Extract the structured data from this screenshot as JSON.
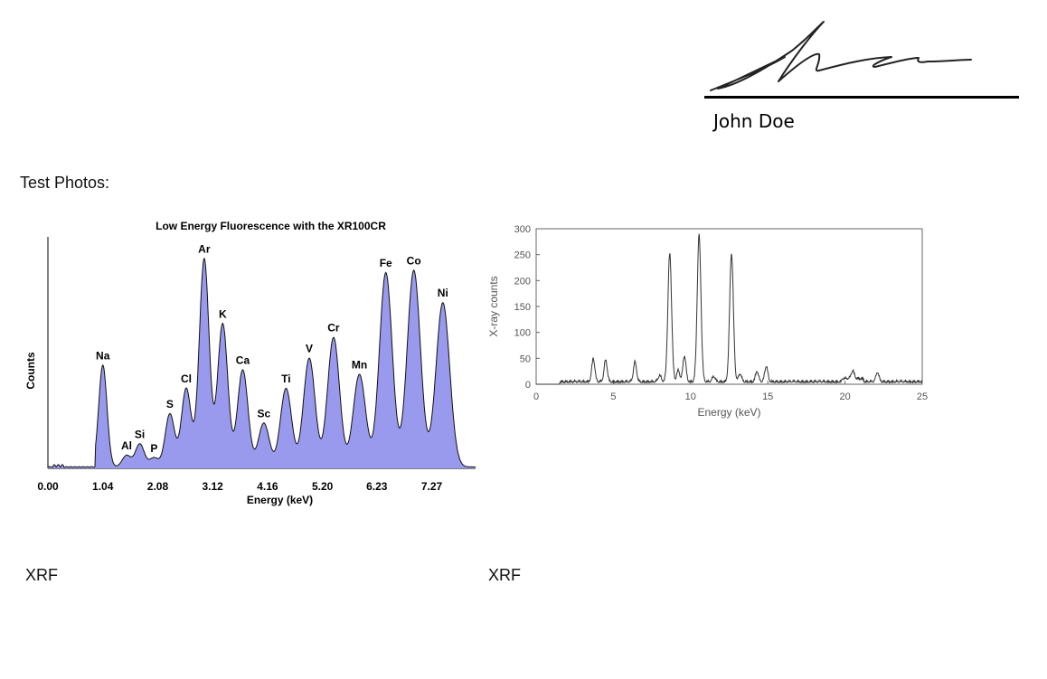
{
  "signature": {
    "name": "John Doe"
  },
  "section": {
    "heading": "Test Photos:"
  },
  "captions": {
    "left": "XRF",
    "right": "XRF"
  },
  "chart_data": [
    {
      "type": "area",
      "title": "Low Energy Fluorescence with the XR100CR",
      "xlabel": "Energy (keV)",
      "ylabel": "Counts",
      "xlim": [
        0,
        8.1
      ],
      "ylim": [
        0,
        100
      ],
      "x_ticks": [
        "0.00",
        "1.04",
        "2.08",
        "3.12",
        "4.16",
        "5.20",
        "6.23",
        "7.27"
      ],
      "y_ticks": false,
      "fill_color": "#9999ee",
      "grid": false,
      "peaks": [
        {
          "label": "Na",
          "x": 1.04,
          "y": 44
        },
        {
          "label": "Al",
          "x": 1.49,
          "y": 5
        },
        {
          "label": "Si",
          "x": 1.74,
          "y": 10
        },
        {
          "label": "P",
          "x": 2.01,
          "y": 4
        },
        {
          "label": "S",
          "x": 2.31,
          "y": 23
        },
        {
          "label": "Cl",
          "x": 2.62,
          "y": 34
        },
        {
          "label": "Ar",
          "x": 2.96,
          "y": 90
        },
        {
          "label": "K",
          "x": 3.31,
          "y": 62
        },
        {
          "label": "Ca",
          "x": 3.69,
          "y": 42
        },
        {
          "label": "Sc",
          "x": 4.09,
          "y": 19
        },
        {
          "label": "Ti",
          "x": 4.51,
          "y": 34
        },
        {
          "label": "V",
          "x": 4.95,
          "y": 47
        },
        {
          "label": "Cr",
          "x": 5.41,
          "y": 56
        },
        {
          "label": "Mn",
          "x": 5.9,
          "y": 40
        },
        {
          "label": "Fe",
          "x": 6.4,
          "y": 84
        },
        {
          "label": "Co",
          "x": 6.93,
          "y": 85
        },
        {
          "label": "Ni",
          "x": 7.48,
          "y": 71
        }
      ]
    },
    {
      "type": "line",
      "title": "",
      "xlabel": "Energy (keV)",
      "ylabel": "X-ray counts",
      "xlim": [
        0,
        25
      ],
      "ylim": [
        0,
        300
      ],
      "x_ticks": [
        0,
        5,
        10,
        15,
        20,
        25
      ],
      "y_ticks": [
        0,
        50,
        100,
        150,
        200,
        250,
        300
      ],
      "line_color": "#333333",
      "grid": false,
      "peaks": [
        {
          "x": 3.7,
          "y": 45
        },
        {
          "x": 4.5,
          "y": 42
        },
        {
          "x": 6.4,
          "y": 38
        },
        {
          "x": 8.0,
          "y": 12
        },
        {
          "x": 8.65,
          "y": 248
        },
        {
          "x": 9.2,
          "y": 22
        },
        {
          "x": 9.6,
          "y": 50
        },
        {
          "x": 10.55,
          "y": 283
        },
        {
          "x": 11.5,
          "y": 10
        },
        {
          "x": 12.65,
          "y": 248
        },
        {
          "x": 13.2,
          "y": 15
        },
        {
          "x": 14.3,
          "y": 20
        },
        {
          "x": 14.9,
          "y": 30
        },
        {
          "x": 20.5,
          "y": 15
        },
        {
          "x": 22.1,
          "y": 18
        }
      ]
    }
  ]
}
